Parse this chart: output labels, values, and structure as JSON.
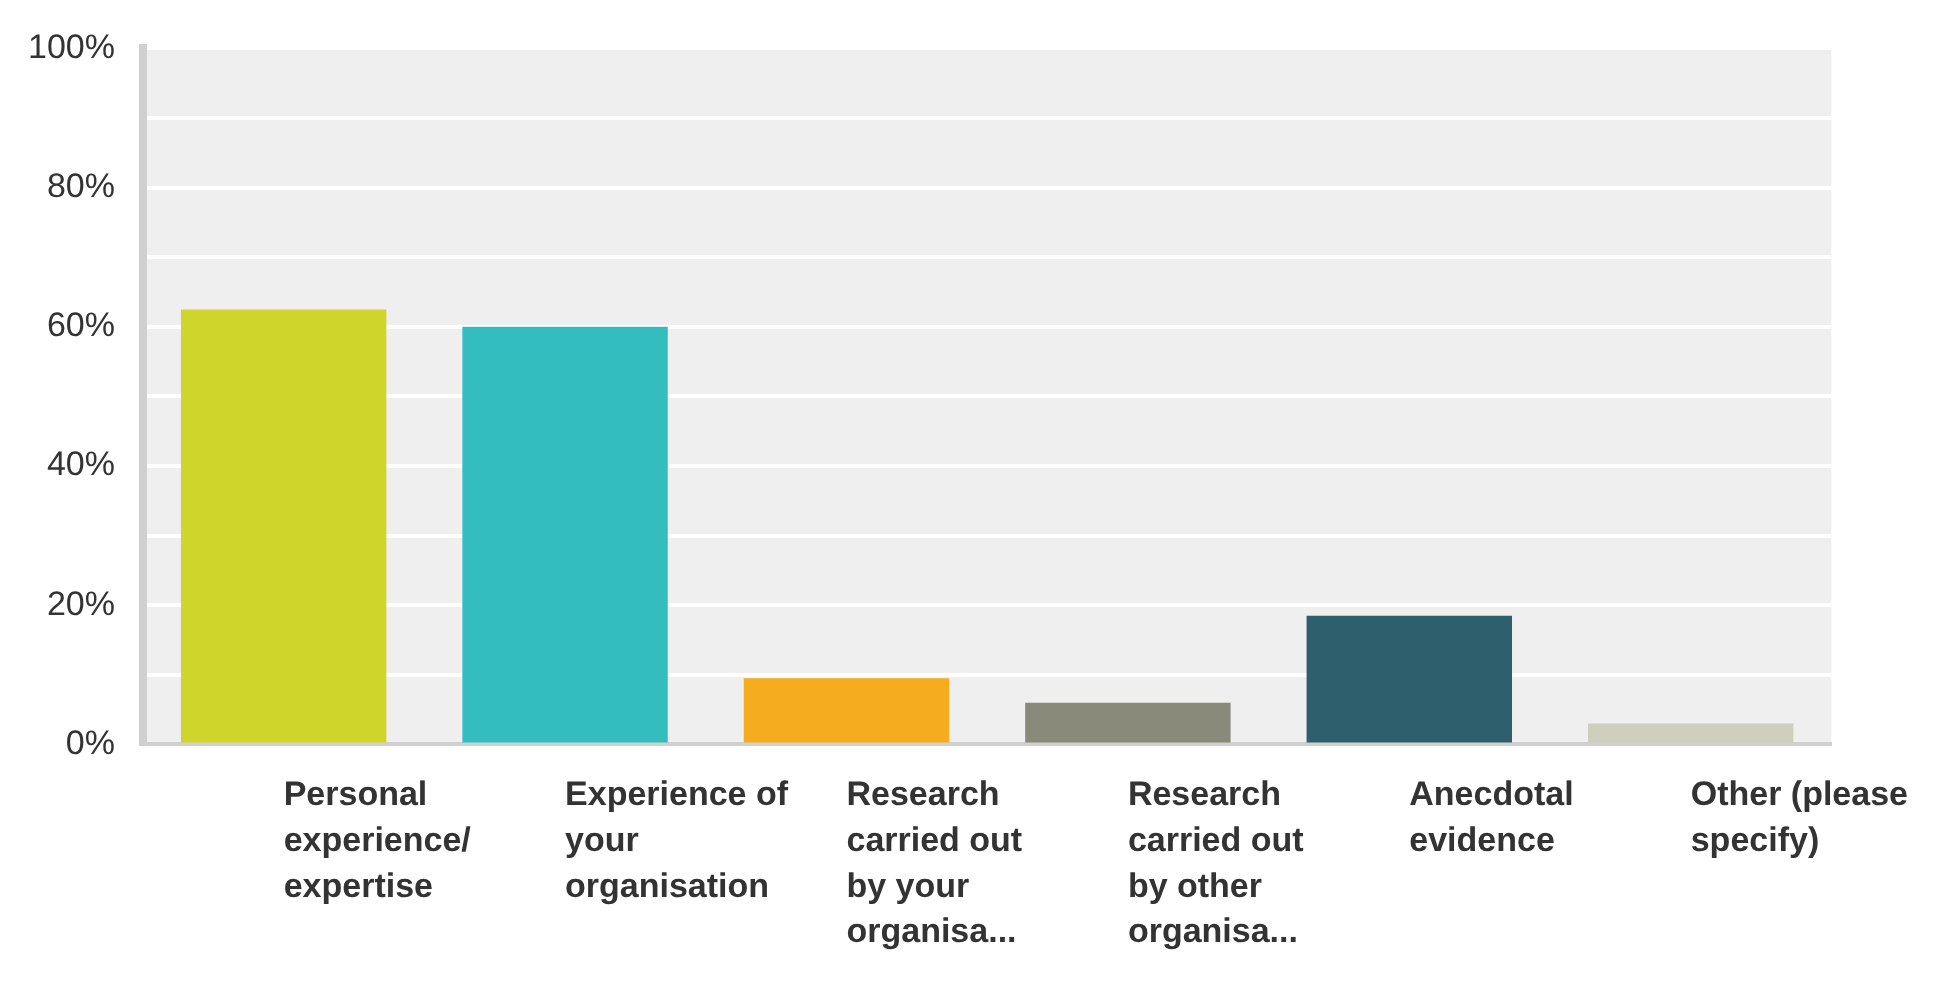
{
  "chart_data": {
    "type": "bar",
    "categories": [
      "Personal experience/ expertise",
      "Experience of your organisation",
      "Research carried out by your organisa...",
      "Research carried out by other organisa...",
      "Anecdotal evidence",
      "Other (please specify)"
    ],
    "values": [
      62.5,
      60,
      9.5,
      6,
      18.5,
      3
    ],
    "colors": [
      "#cfd52a",
      "#33bdbf",
      "#f6ac1f",
      "#898a79",
      "#2e5f6d",
      "#cfcfbf"
    ],
    "ylim": [
      0,
      100
    ],
    "yticks": [
      {
        "value": 0,
        "label": "0%"
      },
      {
        "value": 10,
        "label": null
      },
      {
        "value": 20,
        "label": "20%"
      },
      {
        "value": 30,
        "label": null
      },
      {
        "value": 40,
        "label": "40%"
      },
      {
        "value": 50,
        "label": null
      },
      {
        "value": 60,
        "label": "60%"
      },
      {
        "value": 70,
        "label": null
      },
      {
        "value": 80,
        "label": "80%"
      },
      {
        "value": 90,
        "label": null
      },
      {
        "value": 100,
        "label": "100%"
      }
    ],
    "grid": "y",
    "legend": false
  }
}
